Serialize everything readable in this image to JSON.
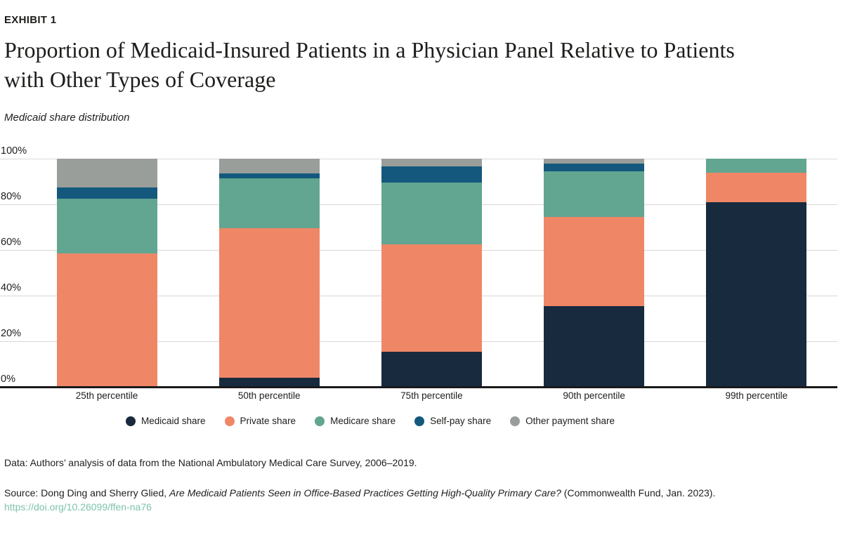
{
  "header": {
    "exhibit_label": "EXHIBIT 1",
    "title_lines": [
      "Proportion of Medicaid-Insured Patients in a Physician Panel Relative to Patients",
      "with Other Types of Coverage"
    ],
    "subtitle": "Medicaid share distribution"
  },
  "chart_data": {
    "type": "bar",
    "stacked": true,
    "title": "Medicaid share distribution",
    "categories": [
      "25th percentile",
      "50th percentile",
      "75th percentile",
      "90th percentile",
      "99th percentile"
    ],
    "series": [
      {
        "name": "Medicaid share",
        "color": "#182A3E",
        "values": [
          0,
          4,
          15.5,
          35.5,
          81
        ]
      },
      {
        "name": "Private share",
        "color": "#EF8767",
        "values": [
          58.5,
          65.5,
          47,
          39,
          13
        ]
      },
      {
        "name": "Medicare share",
        "color": "#62A591",
        "values": [
          24,
          22,
          27,
          20,
          6
        ]
      },
      {
        "name": "Self-pay share",
        "color": "#14597D",
        "values": [
          5,
          2,
          7,
          3.5,
          0
        ]
      },
      {
        "name": "Other payment share",
        "color": "#9A9E9A",
        "values": [
          12.5,
          6.5,
          3.5,
          2,
          0
        ]
      }
    ],
    "y_ticks": [
      {
        "label": "0%",
        "value": 0
      },
      {
        "label": "20%",
        "value": 20
      },
      {
        "label": "40%",
        "value": 40
      },
      {
        "label": "60%",
        "value": 60
      },
      {
        "label": "80%",
        "value": 80
      },
      {
        "label": "100%",
        "value": 100
      }
    ],
    "ylim": [
      0,
      100
    ],
    "grid": true,
    "legend_position": "bottom",
    "grid_color": "#d8d8d8",
    "axis_color": "#1a1a1a"
  },
  "footer": {
    "data_note": "Data: Authors’ analysis of data from the National Ambulatory Medical Care Survey, 2006–2019.",
    "source_prefix": "Source: Dong Ding and Sherry Glied, ",
    "source_title": "Are Medicaid Patients Seen in Office-Based Practices Getting High-Quality Primary Care?",
    "source_suffix": " (Commonwealth Fund, Jan. 2023).",
    "link": "https://doi.org/10.26099/ffen-na76"
  }
}
